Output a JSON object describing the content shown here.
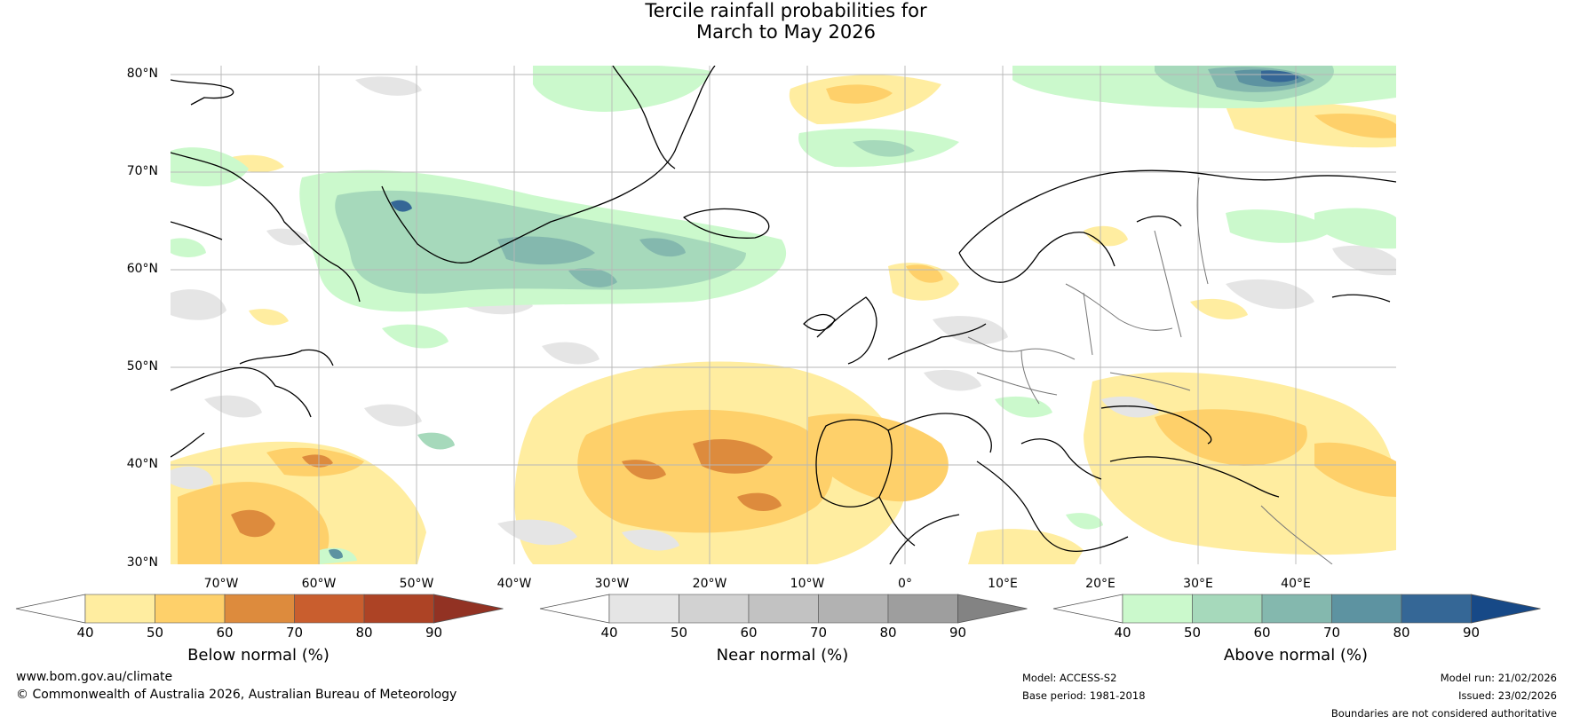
{
  "title": {
    "line1": "Tercile rainfall probabilities for",
    "line2": "March to May 2026"
  },
  "latitude_labels": [
    "80°N",
    "70°N",
    "60°N",
    "50°N",
    "40°N",
    "30°N"
  ],
  "longitude_labels": [
    "70°W",
    "60°W",
    "50°W",
    "40°W",
    "30°W",
    "20°W",
    "10°W",
    "0°",
    "10°E",
    "20°E",
    "30°E",
    "40°E"
  ],
  "colorbars": [
    {
      "title": "Below normal (%)",
      "ticks": [
        "40",
        "50",
        "60",
        "70",
        "80",
        "90"
      ],
      "colors": [
        "#ffffff",
        "#ffeda0",
        "#fed06a",
        "#dd8b3d",
        "#c95e2e",
        "#ad4325",
        "#923223"
      ]
    },
    {
      "title": "Near normal (%)",
      "ticks": [
        "40",
        "50",
        "60",
        "70",
        "80",
        "90"
      ],
      "colors": [
        "#ffffff",
        "#e5e5e5",
        "#d2d2d2",
        "#c2c2c2",
        "#b2b2b2",
        "#9e9e9e",
        "#838383"
      ]
    },
    {
      "title": "Above normal (%)",
      "ticks": [
        "40",
        "50",
        "60",
        "70",
        "80",
        "90"
      ],
      "colors": [
        "#ffffff",
        "#cbf9cc",
        "#a6d9bb",
        "#84b8ae",
        "#5d93a1",
        "#356796",
        "#174987"
      ]
    }
  ],
  "footer": {
    "url": "www.bom.gov.au/climate",
    "copyright": "© Commonwealth of Australia 2026, Australian Bureau of Meteorology",
    "model": "Model: ACCESS-S2",
    "base_period": "Base period: 1981-2018",
    "model_run": "Model run: 21/02/2026",
    "issued": "Issued: 23/02/2026",
    "disclaimer": "Boundaries are not considered authoritative"
  }
}
